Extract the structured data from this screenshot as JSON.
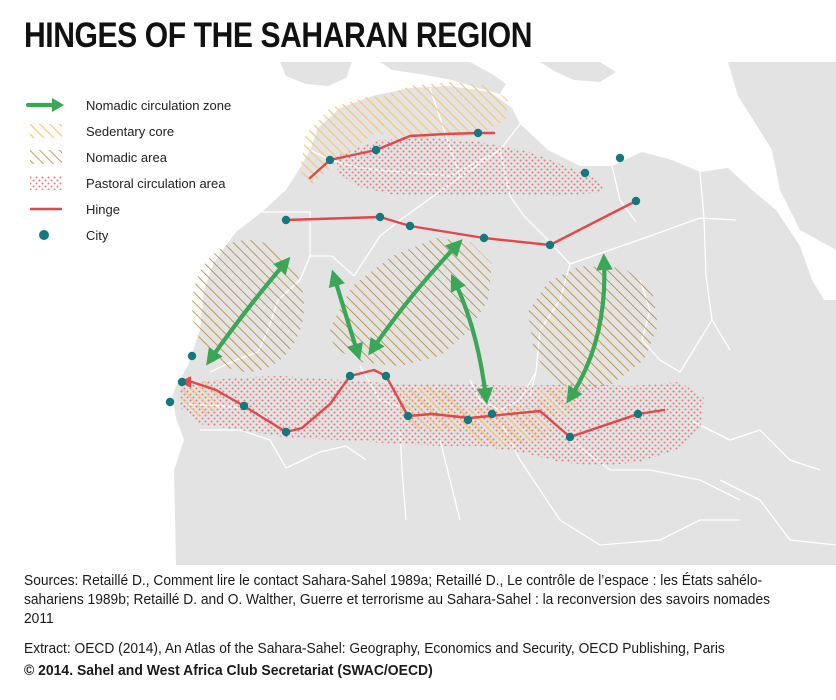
{
  "title": "HINGES OF THE SAHARAN REGION",
  "legend": [
    {
      "label": "Nomadic circulation zone",
      "symbol": "green-arrow",
      "color": "#3aa757"
    },
    {
      "label": "Sedentary core",
      "symbol": "yellow-hatch",
      "color": "#f5c97a"
    },
    {
      "label": "Nomadic area",
      "symbol": "brown-hatch",
      "color": "#b5862d"
    },
    {
      "label": "Pastoral circulation area",
      "symbol": "red-dots",
      "color": "#e8757a"
    },
    {
      "label": "Hinge",
      "symbol": "red-line",
      "color": "#e2474b"
    },
    {
      "label": "City",
      "symbol": "teal-dot",
      "color": "#12797f"
    }
  ],
  "colors": {
    "land": "#e3e3e3",
    "sea": "#ffffff",
    "borders": "#ffffff",
    "hinge": "#e2474b",
    "city": "#12797f",
    "nomadic_arrow": "#3aa757",
    "nomadic_hatch": "#b5862d",
    "sedentary_hatch": "#f5c97a",
    "pastoral_dots": "#e8757a"
  },
  "sources": "Sources: Retaillé D., Comment lire le contact Sahara-Sahel 1989a; Retaillé D., Le contrôle de l’espace : les États sahélo-sahariens 1989b; Retaillé D. and O. Walther, Guerre et terrorisme au Sahara-Sahel : la reconversion des savoirs nomades 2011",
  "extract": "Extract: OECD (2014), An Atlas of the Sahara-Sahel: Geography, Economics  and Security, OECD Publishing, Paris",
  "copyright": "© 2014. Sahel and West Africa Club Secretariat (SWAC/OECD)"
}
